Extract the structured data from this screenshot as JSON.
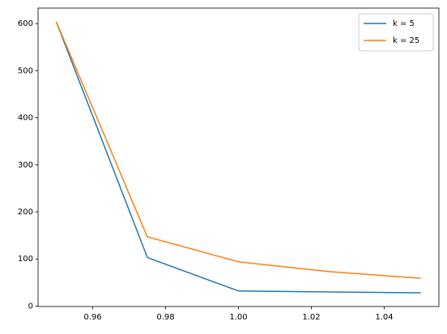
{
  "chart_data": {
    "type": "line",
    "x": [
      0.95,
      0.975,
      1.0,
      1.025,
      1.05
    ],
    "series": [
      {
        "name": "k = 5",
        "color": "#1f77b4",
        "values": [
          604,
          103,
          32,
          30,
          28
        ]
      },
      {
        "name": "k = 25",
        "color": "#ff7f0e",
        "values": [
          604,
          147,
          94,
          73,
          59
        ]
      }
    ],
    "xlim": [
      0.945,
      1.055
    ],
    "ylim": [
      -1,
      633
    ],
    "xticks": [
      {
        "value": 0.96,
        "label": "0.96"
      },
      {
        "value": 0.98,
        "label": "0.98"
      },
      {
        "value": 1.0,
        "label": "1.00"
      },
      {
        "value": 1.02,
        "label": "1.02"
      },
      {
        "value": 1.04,
        "label": "1.04"
      }
    ],
    "yticks": [
      0,
      100,
      200,
      300,
      400,
      500,
      600
    ],
    "legend": "upper right",
    "grid": false
  }
}
